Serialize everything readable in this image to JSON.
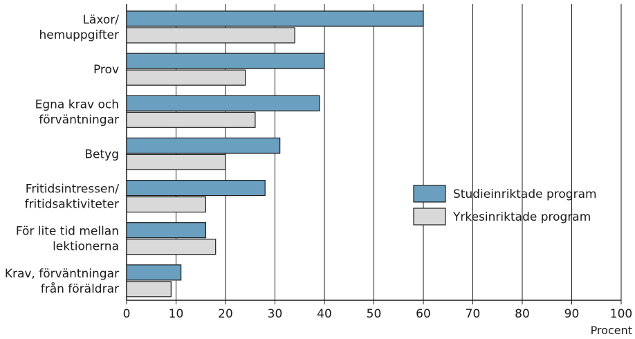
{
  "chart_data": {
    "type": "bar",
    "orientation": "horizontal",
    "categories": [
      [
        "Läxor/",
        "hemuppgifter"
      ],
      [
        "Prov"
      ],
      [
        "Egna krav och",
        "förväntningar"
      ],
      [
        "Betyg"
      ],
      [
        "Fritidsintressen/",
        "fritidsaktiviteter"
      ],
      [
        "För lite tid mellan",
        "lektionerna"
      ],
      [
        "Krav, förväntningar",
        "från föräldrar"
      ]
    ],
    "series": [
      {
        "name": "Studieinriktade program",
        "color": "#6a9fc0",
        "values": [
          60,
          40,
          39,
          31,
          28,
          16,
          11
        ]
      },
      {
        "name": "Yrkesinriktade program",
        "color": "#d9d9d9",
        "values": [
          34,
          24,
          26,
          20,
          16,
          18,
          9
        ]
      }
    ],
    "xlim": [
      0,
      100
    ],
    "xticks": [
      "0",
      "10",
      "20",
      "30",
      "40",
      "50",
      "60",
      "70",
      "80",
      "90",
      "100"
    ],
    "xlabel": "Procent",
    "grid": true,
    "legend_position": "right-middle"
  }
}
